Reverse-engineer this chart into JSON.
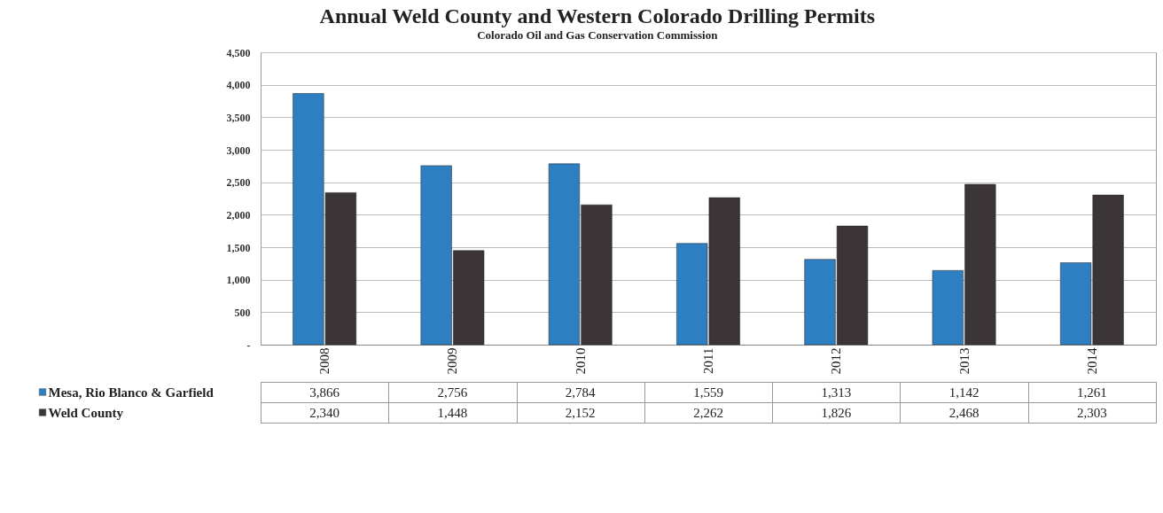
{
  "chart_data": {
    "type": "bar",
    "title": "Annual Weld County and Western Colorado Drilling Permits",
    "subtitle": "Colorado Oil and Gas Conservation Commission",
    "categories": [
      "2008",
      "2009",
      "2010",
      "2011",
      "2012",
      "2013",
      "2014"
    ],
    "series": [
      {
        "name": "Mesa, Rio Blanco & Garfield",
        "color": "#2e7fc2",
        "values": [
          3866,
          2756,
          2784,
          1559,
          1313,
          1142,
          1261
        ],
        "value_labels": [
          "3,866",
          "2,756",
          "2,784",
          "1,559",
          "1,313",
          "1,142",
          "1,261"
        ]
      },
      {
        "name": "Weld County",
        "color": "#3b3538",
        "values": [
          2340,
          1448,
          2152,
          2262,
          1826,
          2468,
          2303
        ],
        "value_labels": [
          "2,340",
          "1,448",
          "2,152",
          "2,262",
          "1,826",
          "2,468",
          "2,303"
        ]
      }
    ],
    "ylim": [
      0,
      4500
    ],
    "yticks": [
      {
        "value": 0,
        "label": "-"
      },
      {
        "value": 500,
        "label": "500"
      },
      {
        "value": 1000,
        "label": "1,000"
      },
      {
        "value": 1500,
        "label": "1,500"
      },
      {
        "value": 2000,
        "label": "2,000"
      },
      {
        "value": 2500,
        "label": "2,500"
      },
      {
        "value": 3000,
        "label": "3,000"
      },
      {
        "value": 3500,
        "label": "3,500"
      },
      {
        "value": 4000,
        "label": "4,000"
      },
      {
        "value": 4500,
        "label": "4,500"
      }
    ],
    "grid": "y",
    "legend": "bottom left"
  }
}
